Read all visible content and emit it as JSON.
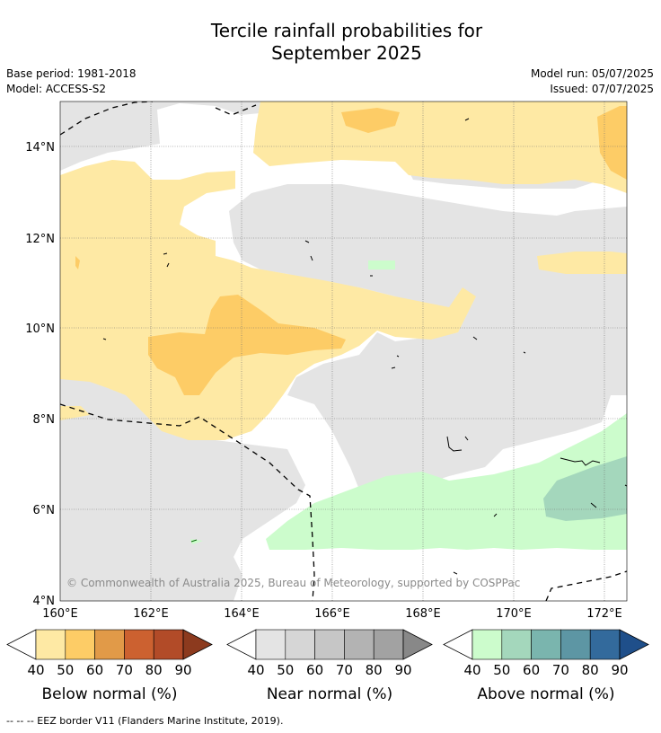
{
  "title_line1": "Tercile rainfall probabilities for",
  "title_line2": "September 2025",
  "base_period": "Base period: 1981-2018",
  "model": "Model: ACCESS-S2",
  "model_run": "Model run: 05/07/2025",
  "issued": "Issued: 07/07/2025",
  "copyright": "© Commonwealth of Australia 2025, Bureau of Meteorology, supported by COSPPac",
  "footnote": "--  --  -- EEZ border V11 (Flanders Marine Institute, 2019).",
  "lat_labels": [
    "4°N",
    "6°N",
    "8°N",
    "10°N",
    "12°N",
    "14°N"
  ],
  "lon_labels": [
    "160°E",
    "162°E",
    "164°E",
    "166°E",
    "168°E",
    "170°E",
    "172°E"
  ],
  "lat_range": [
    4,
    15
  ],
  "lon_range": [
    160,
    172.5
  ],
  "colorbars": [
    {
      "label": "Below normal (%)",
      "ticks": [
        "40",
        "50",
        "60",
        "70",
        "80",
        "90"
      ],
      "colors": [
        "#fee9a4",
        "#fdcc66",
        "#e19a48",
        "#cc6130",
        "#b24b28",
        "#8c3a1e"
      ]
    },
    {
      "label": "Near normal (%)",
      "ticks": [
        "40",
        "50",
        "60",
        "70",
        "80",
        "90"
      ],
      "colors": [
        "#e4e4e4",
        "#d6d6d6",
        "#c6c6c6",
        "#b3b3b3",
        "#a2a2a2",
        "#888888"
      ]
    },
    {
      "label": "Above normal (%)",
      "ticks": [
        "40",
        "50",
        "60",
        "70",
        "80",
        "90"
      ],
      "colors": [
        "#ccfccc",
        "#a4d7bc",
        "#7ab5ae",
        "#5d96a4",
        "#336a9c",
        "#1f4f8a"
      ]
    }
  ]
}
